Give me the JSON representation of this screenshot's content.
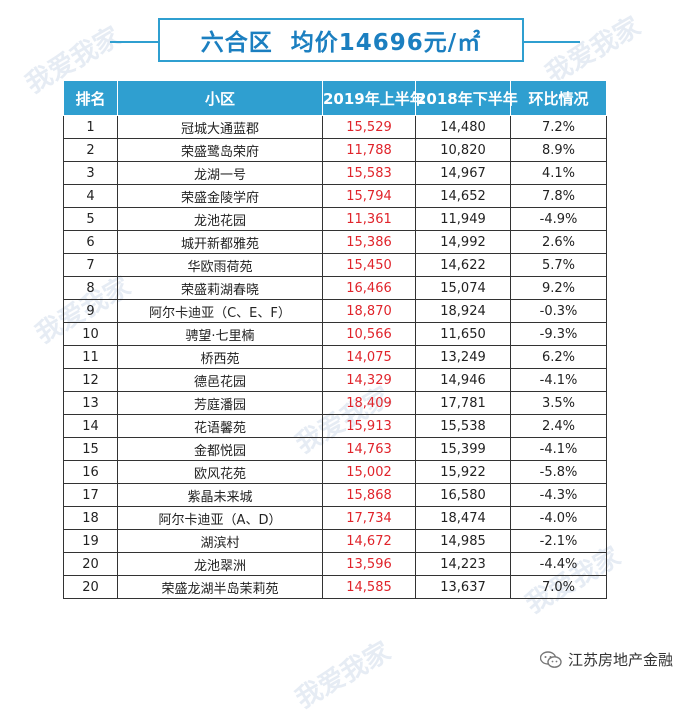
{
  "title": {
    "district": "六合区",
    "avg_price": "均价14696元/㎡"
  },
  "table": {
    "headers": [
      "排名",
      "小区",
      "2019年上半年",
      "2018年下半年",
      "环比情况"
    ],
    "rows": [
      [
        "1",
        "冠城大通蓝郡",
        "15,529",
        "14,480",
        "7.2%"
      ],
      [
        "2",
        "荣盛鹭岛荣府",
        "11,788",
        "10,820",
        "8.9%"
      ],
      [
        "3",
        "龙湖一号",
        "15,583",
        "14,967",
        "4.1%"
      ],
      [
        "4",
        "荣盛金陵学府",
        "15,794",
        "14,652",
        "7.8%"
      ],
      [
        "5",
        "龙池花园",
        "11,361",
        "11,949",
        "-4.9%"
      ],
      [
        "6",
        "城开新都雅苑",
        "15,386",
        "14,992",
        "2.6%"
      ],
      [
        "7",
        "华欧雨荷苑",
        "15,450",
        "14,622",
        "5.7%"
      ],
      [
        "8",
        "荣盛莉湖春晓",
        "16,466",
        "15,074",
        "9.2%"
      ],
      [
        "9",
        "阿尔卡迪亚（C、E、F）",
        "18,870",
        "18,924",
        "-0.3%"
      ],
      [
        "10",
        "骋望·七里楠",
        "10,566",
        "11,650",
        "-9.3%"
      ],
      [
        "11",
        "桥西苑",
        "14,075",
        "13,249",
        "6.2%"
      ],
      [
        "12",
        "德邑花园",
        "14,329",
        "14,946",
        "-4.1%"
      ],
      [
        "13",
        "芳庭潘园",
        "18,409",
        "17,781",
        "3.5%"
      ],
      [
        "14",
        "花语馨苑",
        "15,913",
        "15,538",
        "2.4%"
      ],
      [
        "15",
        "金都悦园",
        "14,763",
        "15,399",
        "-4.1%"
      ],
      [
        "16",
        "欧风花苑",
        "15,002",
        "15,922",
        "-5.8%"
      ],
      [
        "17",
        "紫晶未来城",
        "15,868",
        "16,580",
        "-4.3%"
      ],
      [
        "18",
        "阿尔卡迪亚（A、D）",
        "17,734",
        "18,474",
        "-4.0%"
      ],
      [
        "19",
        "湖滨村",
        "14,672",
        "14,985",
        "-2.1%"
      ],
      [
        "20",
        "龙池翠洲",
        "13,596",
        "14,223",
        "-4.4%"
      ],
      [
        "20",
        "荣盛龙湖半岛茉莉苑",
        "14,585",
        "13,637",
        "7.0%"
      ]
    ]
  },
  "watermark_text": "我爱我家",
  "footer": {
    "account": "江苏房地产金融",
    "icon": "wechat-icon"
  },
  "colors": {
    "header_bg": "#2f9fd0",
    "title_text": "#1b7fc0",
    "highlight_value": "#e0242b"
  }
}
